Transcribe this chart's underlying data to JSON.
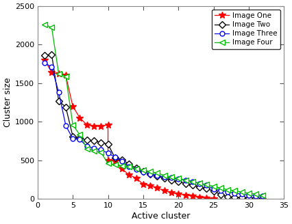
{
  "title": "",
  "xlabel": "Active cluster",
  "ylabel": "Cluster size",
  "xlim": [
    0,
    35
  ],
  "ylim": [
    0,
    2500
  ],
  "xticks": [
    0,
    5,
    10,
    15,
    20,
    25,
    30,
    35
  ],
  "yticks": [
    0,
    500,
    1000,
    1500,
    2000,
    2500
  ],
  "image_one": {
    "x": [
      1,
      2,
      3,
      4,
      5,
      6,
      7,
      8,
      9,
      10,
      10,
      11,
      12,
      13,
      14,
      15,
      16,
      17,
      18,
      19,
      20,
      21,
      22,
      23,
      24,
      25
    ],
    "y": [
      1800,
      1640,
      1620,
      1600,
      1200,
      1050,
      960,
      940,
      940,
      960,
      500,
      490,
      390,
      310,
      270,
      190,
      170,
      140,
      110,
      80,
      60,
      50,
      35,
      20,
      10,
      5
    ],
    "color": "#ff0000",
    "marker": "*",
    "markersize": 7,
    "markerfacecolor": "#ff0000",
    "label": "Image One"
  },
  "image_two": {
    "x": [
      1,
      2,
      3,
      4,
      5,
      6,
      7,
      8,
      9,
      10,
      11,
      12,
      13,
      14,
      15,
      16,
      17,
      18,
      19,
      20,
      21,
      22,
      23,
      24,
      25,
      26,
      27,
      28,
      29,
      30,
      31,
      32
    ],
    "y": [
      1860,
      1870,
      1270,
      1190,
      810,
      790,
      760,
      755,
      730,
      710,
      530,
      510,
      450,
      400,
      355,
      320,
      295,
      265,
      245,
      220,
      200,
      175,
      155,
      135,
      100,
      55,
      30,
      20,
      18,
      15,
      10,
      5
    ],
    "color": "#000000",
    "marker": "D",
    "markersize": 5,
    "markerfacecolor": "white",
    "label": "Image Two"
  },
  "image_three": {
    "x": [
      1,
      2,
      3,
      4,
      5,
      6,
      7,
      8,
      9,
      10,
      11,
      12,
      13,
      14,
      15,
      16,
      17,
      18,
      19,
      20,
      21,
      22,
      23,
      24,
      25,
      26,
      27,
      28,
      29,
      30,
      31,
      32
    ],
    "y": [
      1760,
      1710,
      1380,
      950,
      780,
      770,
      680,
      660,
      635,
      595,
      540,
      490,
      420,
      385,
      350,
      325,
      305,
      285,
      275,
      255,
      245,
      225,
      200,
      180,
      130,
      110,
      95,
      75,
      60,
      50,
      40,
      35
    ],
    "color": "#0000ff",
    "marker": "o",
    "markersize": 5,
    "markerfacecolor": "white",
    "label": "Image Three"
  },
  "image_four": {
    "x": [
      1,
      2,
      3,
      4,
      5,
      6,
      7,
      8,
      9,
      10,
      11,
      12,
      13,
      14,
      15,
      16,
      17,
      18,
      19,
      20,
      21,
      22,
      23,
      24,
      25,
      26,
      27,
      28,
      29,
      30,
      31,
      32
    ],
    "y": [
      2260,
      2220,
      1620,
      1590,
      960,
      830,
      650,
      625,
      600,
      460,
      445,
      430,
      420,
      395,
      375,
      355,
      335,
      305,
      285,
      265,
      245,
      225,
      205,
      185,
      165,
      140,
      120,
      105,
      90,
      75,
      60,
      45
    ],
    "color": "#00bb00",
    "marker": "<",
    "markersize": 6,
    "markerfacecolor": "white",
    "label": "Image Four"
  },
  "fig_width": 4.26,
  "fig_height": 3.28,
  "dpi": 100
}
